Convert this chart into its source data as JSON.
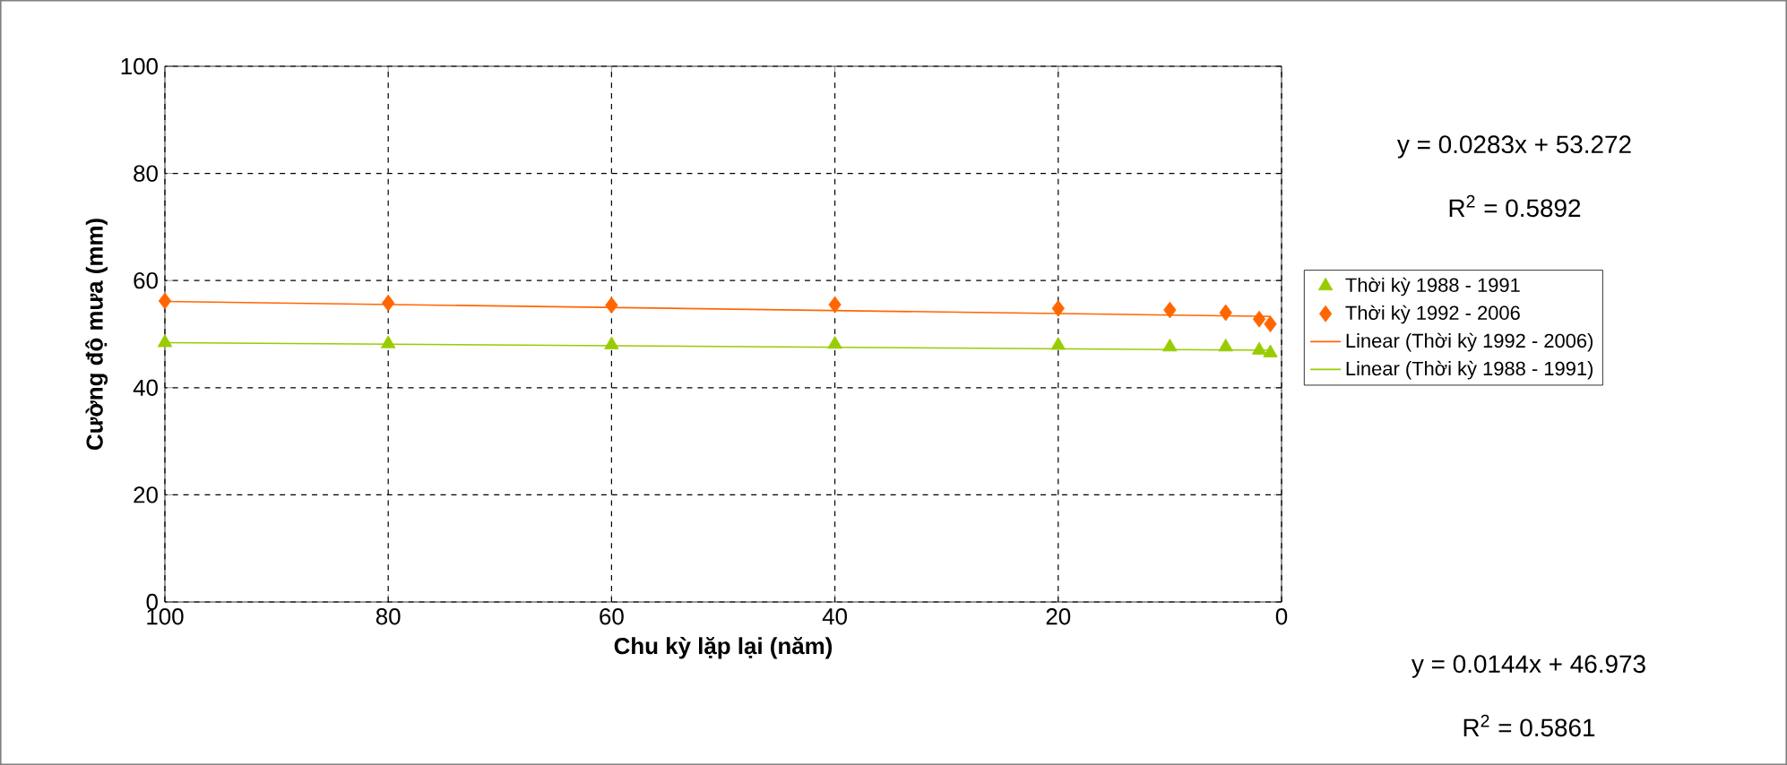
{
  "chart_data": {
    "type": "scatter",
    "xlabel": "Chu kỳ lặp lại (năm)",
    "ylabel": "Cường độ mưa (mm)",
    "xlim": [
      100,
      0
    ],
    "xticks": [
      100,
      80,
      60,
      40,
      20,
      0
    ],
    "ylim": [
      0,
      100
    ],
    "yticks": [
      0,
      20,
      40,
      60,
      80,
      100
    ],
    "grid": true,
    "legend": "right",
    "series": [
      {
        "name": "Thời kỳ 1988 - 1991",
        "marker": "triangle",
        "color": "#99cc00",
        "x": [
          100,
          80,
          60,
          40,
          20,
          10,
          5,
          2,
          1
        ],
        "values": [
          48.4,
          48.2,
          48.0,
          48.1,
          47.9,
          47.6,
          47.6,
          47.0,
          46.5
        ]
      },
      {
        "name": "Thời kỳ 1992 - 2006",
        "marker": "diamond",
        "color": "#ff6600",
        "x": [
          100,
          80,
          60,
          40,
          20,
          10,
          5,
          2,
          1
        ],
        "values": [
          56.2,
          55.8,
          55.4,
          55.5,
          54.8,
          54.5,
          54.0,
          52.8,
          51.9
        ]
      },
      {
        "name": "Linear (Thời kỳ 1992 - 2006)",
        "type": "line",
        "marker": "none",
        "color": "#ff6600",
        "x": [
          100,
          1
        ],
        "values": [
          56.1,
          53.3
        ]
      },
      {
        "name": "Linear (Thời kỳ 1988 - 1991)",
        "type": "line",
        "marker": "none",
        "color": "#99cc00",
        "x": [
          100,
          1
        ],
        "values": [
          48.4,
          47.0
        ]
      }
    ],
    "annotations": [
      "y = 0.0283x + 53.272",
      "R$^{2}$ = 0.5892",
      "y = 0.0144x + 46.973",
      "R$^{2}$ = 0.5861"
    ]
  }
}
